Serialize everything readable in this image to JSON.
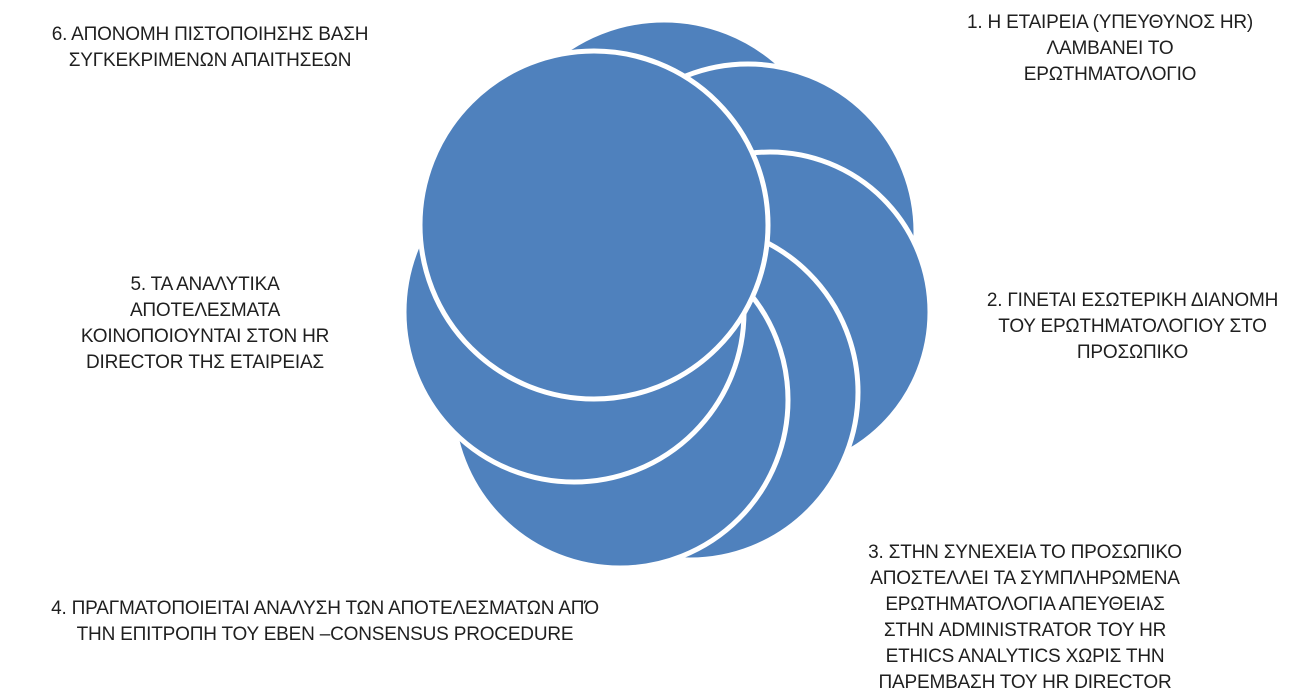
{
  "diagram": {
    "type": "cycle",
    "fill_color": "#4f81bd",
    "stroke_color": "#ffffff",
    "steps": [
      {
        "number": 1,
        "label": "1. Η ΕΤΑΙΡΕΙΑ (ΥΠΕΥΘΥΝΟΣ HR)\nΛΑΜΒΑΝΕΙ ΤΟ\nΕΡΩΤΗΜΑΤΟΛΟΓΙΟ"
      },
      {
        "number": 2,
        "label": "2. ΓΙΝΕΤΑΙ ΕΣΩΤΕΡΙΚΗ ΔΙΑΝΟΜΗ\nΤΟΥ ΕΡΩΤΗΜΑΤΟΛΟΓΙΟΥ ΣΤΟ\nΠΡΟΣΩΠΙΚΟ"
      },
      {
        "number": 3,
        "label": "3. ΣΤΗΝ ΣΥΝΕΧΕΙΑ ΤΟ ΠΡΟΣΩΠΙΚΟ\nΑΠΟΣΤΕΛΛΕΙ ΤΑ ΣΥΜΠΛΗΡΩΜΕΝΑ\nΕΡΩΤΗΜΑΤΟΛΟΓΙΑ ΑΠΕΥΘΕΙΑΣ\nΣΤΗΝ ADMINISTRATOR ΤΟΥ HR\nETHICS ANALYTICS ΧΩΡΙΣ ΤΗΝ\nΠΑΡΕΜΒΑΣΗ ΤΟΥ HR DIRECTOR"
      },
      {
        "number": 4,
        "label": "4. ΠΡΑΓΜΑΤΟΠΟΙΕΙΤΑΙ ΑΝΑΛΥΣΗ ΤΩΝ ΑΠΟΤΕΛΕΣΜΑΤΩΝ ΑΠΌ\nΤΗΝ ΕΠΙΤΡΟΠΗ ΤΟΥ EBEN –CONSENSUS PROCEDURE"
      },
      {
        "number": 5,
        "label": "5. ΤΑ ΑΝΑΛΥΤΙΚΑ\nΑΠΟΤΕΛΕΣΜΑΤΑ\nΚΟΙΝΟΠΟΙΟΥΝΤΑΙ ΣΤΟΝ HR\nDIRECTOR ΤΗΣ ΕΤΑΙΡΕΙΑΣ"
      },
      {
        "number": 6,
        "label": "6. ΑΠΟΝΟΜΗ ΠΙΣΤΟΠΟΙΗΣΗΣ ΒΑΣΗ\nΣΥΓΚΕΚΡΙΜΕΝΩΝ ΑΠΑΙΤΗΣΕΩΝ"
      }
    ]
  }
}
